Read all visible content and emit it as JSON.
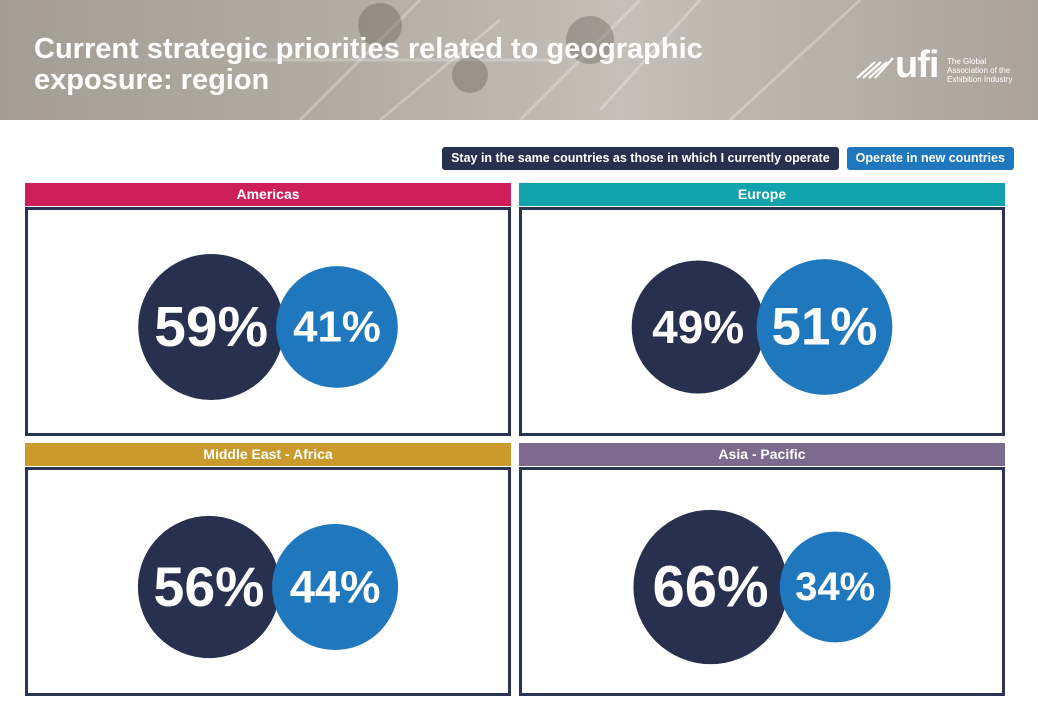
{
  "header": {
    "title": "Current strategic priorities related to geographic\nexposure: region",
    "logo_text": "ufi",
    "logo_tagline": "The Global\nAssociation of the\nExhibition Industry"
  },
  "colors": {
    "stay": "#27314f",
    "new": "#1f77bd",
    "americas": "#cf1f5a",
    "europe": "#11a2ad",
    "mea": "#cb9a2c",
    "apac": "#7c6a8f"
  },
  "chart_data": {
    "type": "bubble",
    "series": [
      {
        "name": "Stay in the same countries as those in which I currently operate"
      },
      {
        "name": "Operate in new countries"
      }
    ],
    "panels": [
      {
        "region": "Americas",
        "color_key": "americas",
        "values": [
          59,
          41
        ],
        "labels": [
          "59%",
          "41%"
        ]
      },
      {
        "region": "Europe",
        "color_key": "europe",
        "values": [
          49,
          51
        ],
        "labels": [
          "49%",
          "51%"
        ]
      },
      {
        "region": "Middle East - Africa",
        "color_key": "mea",
        "values": [
          56,
          44
        ],
        "labels": [
          "56%",
          "44%"
        ]
      },
      {
        "region": "Asia - Pacific",
        "color_key": "apac",
        "values": [
          66,
          34
        ],
        "labels": [
          "66%",
          "34%"
        ]
      }
    ]
  }
}
